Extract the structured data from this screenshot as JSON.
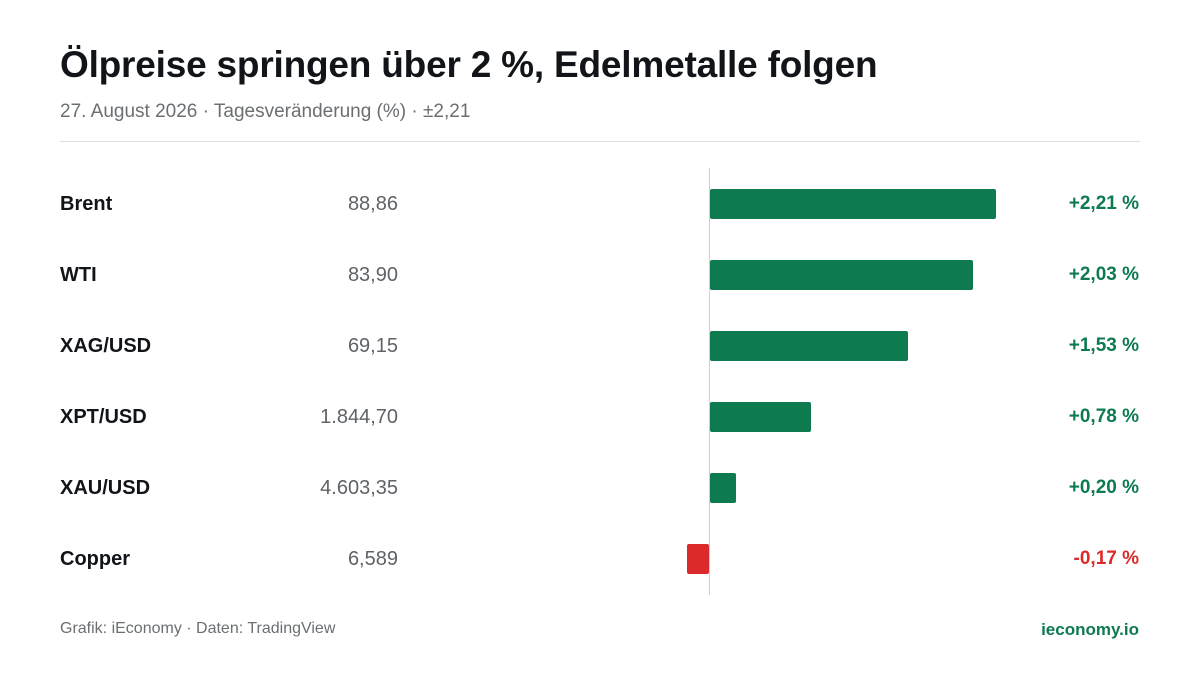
{
  "colors": {
    "positive": "#0d7a4f",
    "negative": "#dc2a2a",
    "title": "#111418",
    "muted": "#6b6f72"
  },
  "header": {
    "title": "Ölpreise springen über 2 %, Edelmetalle folgen",
    "subtitle": "27. August 2026 · Tagesveränderung (%) · ±2,21"
  },
  "footer": {
    "source": "Grafik: iEconomy · Daten: TradingView",
    "brand": "ieconomy.io"
  },
  "chart_data": {
    "type": "bar",
    "orientation": "horizontal",
    "title": "Ölpreise springen über 2 %, Edelmetalle folgen",
    "subtitle": "27. August 2026 · Tagesveränderung (%) · ±2,21",
    "categories": [
      "Brent",
      "WTI",
      "XAG/USD",
      "XPT/USD",
      "XAU/USD",
      "Copper"
    ],
    "prices": [
      "88,86",
      "83,90",
      "69,15",
      "1.844,70",
      "4.603,35",
      "6,589"
    ],
    "values": [
      2.21,
      2.03,
      1.53,
      0.78,
      0.2,
      -0.17
    ],
    "value_labels": [
      "+2,21 %",
      "+2,03 %",
      "+1,53 %",
      "+0,78 %",
      "+0,20 %",
      "-0,17 %"
    ],
    "xlim": [
      -2.21,
      2.21
    ],
    "grid": false,
    "legend": "none"
  }
}
